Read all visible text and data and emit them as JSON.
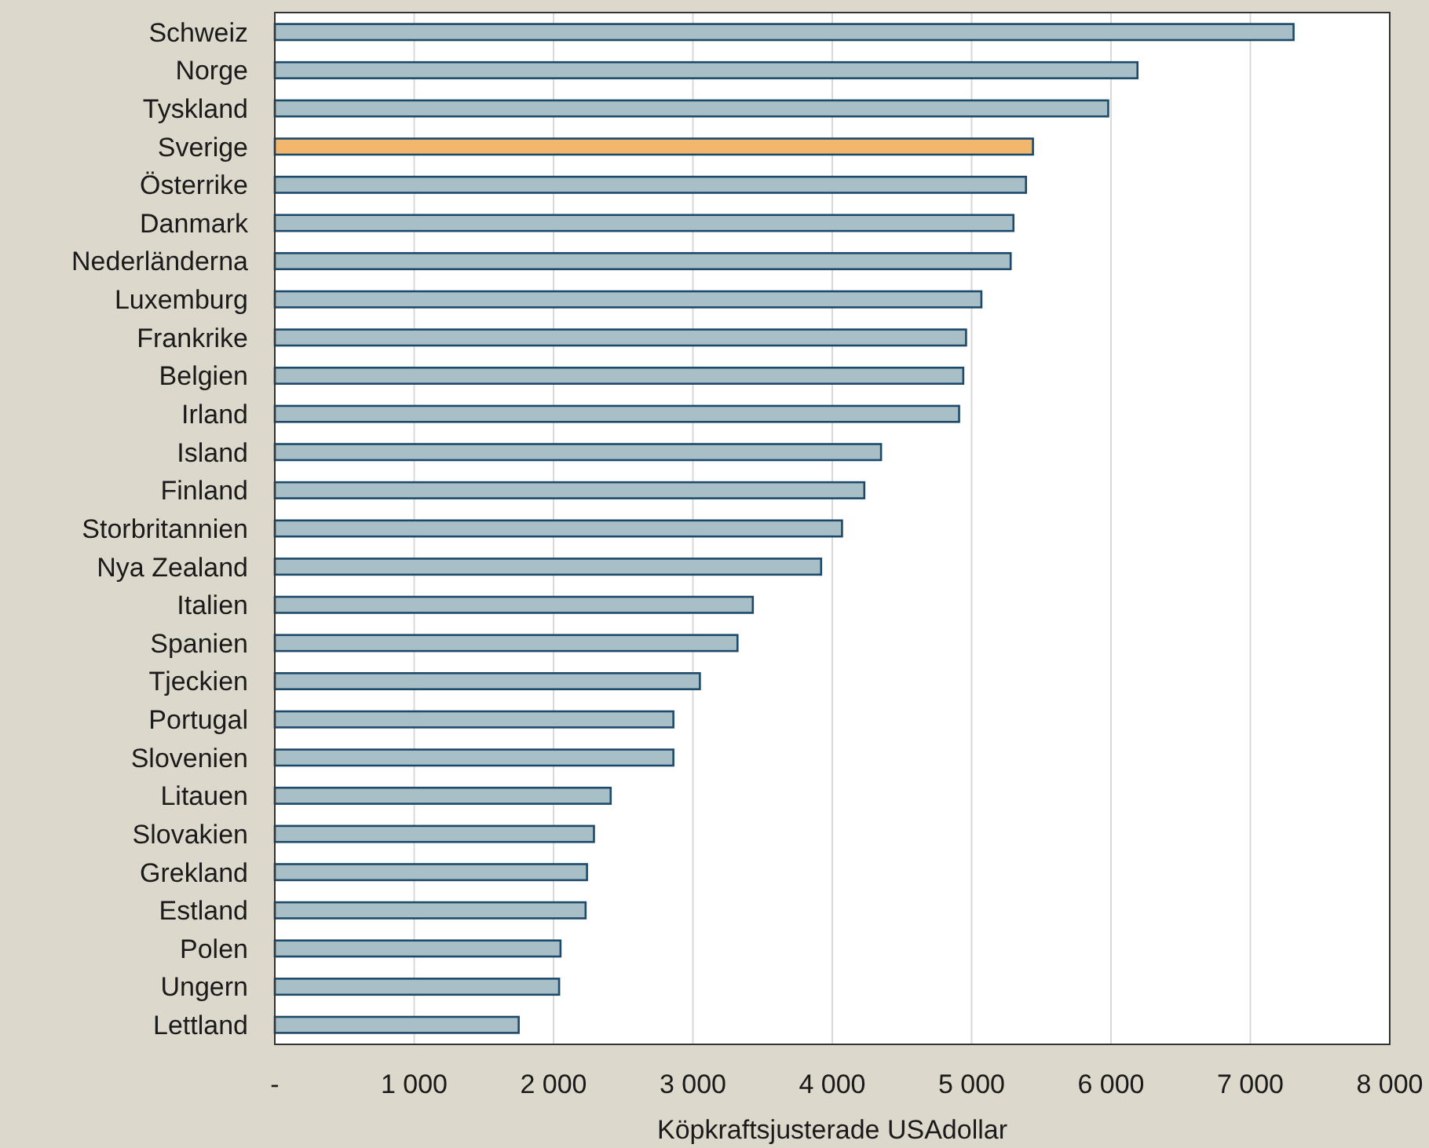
{
  "chart_data": {
    "type": "bar",
    "orientation": "horizontal",
    "xlabel": "Köpkraftsjusterade USAdollar",
    "categories": [
      "Schweiz",
      "Norge",
      "Tyskland",
      "Sverige",
      "Österrike",
      "Danmark",
      "Nederländerna",
      "Luxemburg",
      "Frankrike",
      "Belgien",
      "Irland",
      "Island",
      "Finland",
      "Storbritannien",
      "Nya Zealand",
      "Italien",
      "Spanien",
      "Tjeckien",
      "Portugal",
      "Slovenien",
      "Litauen",
      "Slovakien",
      "Grekland",
      "Estland",
      "Polen",
      "Ungern",
      "Lettland"
    ],
    "values": [
      7310,
      6190,
      5980,
      5440,
      5390,
      5300,
      5280,
      5070,
      4960,
      4940,
      4910,
      4350,
      4230,
      4070,
      3920,
      3430,
      3320,
      3050,
      2860,
      2860,
      2410,
      2290,
      2240,
      2230,
      2050,
      2040,
      1750
    ],
    "colors": [
      "#a9bfc8",
      "#a9bfc8",
      "#a9bfc8",
      "#f2b66d",
      "#a9bfc8",
      "#a9bfc8",
      "#a9bfc8",
      "#a9bfc8",
      "#a9bfc8",
      "#a9bfc8",
      "#a9bfc8",
      "#a9bfc8",
      "#a9bfc8",
      "#a9bfc8",
      "#a9bfc8",
      "#a9bfc8",
      "#a9bfc8",
      "#a9bfc8",
      "#a9bfc8",
      "#a9bfc8",
      "#a9bfc8",
      "#a9bfc8",
      "#a9bfc8",
      "#a9bfc8",
      "#a9bfc8",
      "#a9bfc8",
      "#a9bfc8"
    ],
    "xlim": [
      0,
      8000
    ],
    "xticks": [
      {
        "value": 0,
        "label": "-"
      },
      {
        "value": 1000,
        "label": "1 000"
      },
      {
        "value": 2000,
        "label": "2 000"
      },
      {
        "value": 3000,
        "label": "3 000"
      },
      {
        "value": 4000,
        "label": "4 000"
      },
      {
        "value": 5000,
        "label": "5 000"
      },
      {
        "value": 6000,
        "label": "6 000"
      },
      {
        "value": 7000,
        "label": "7 000"
      },
      {
        "value": 8000,
        "label": "8 000"
      }
    ],
    "grid": "x"
  }
}
